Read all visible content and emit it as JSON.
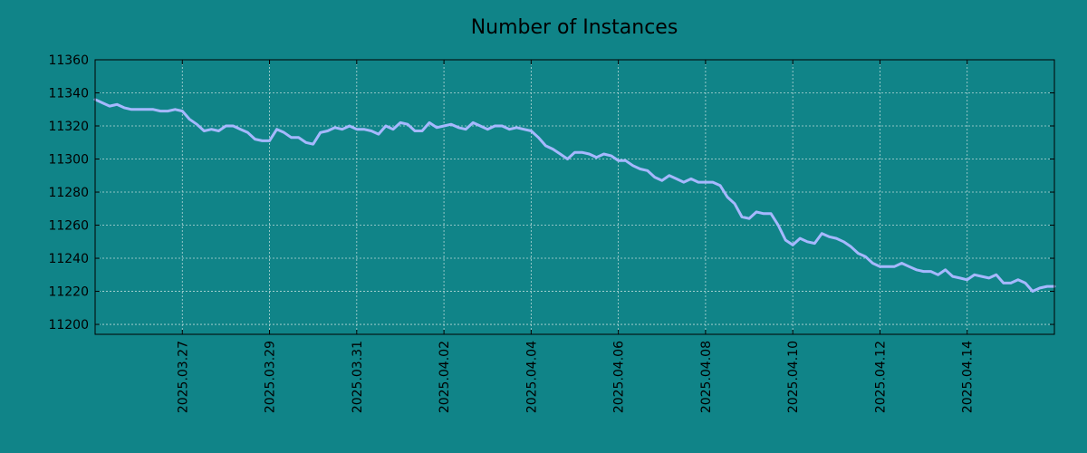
{
  "chart_data": {
    "type": "line",
    "title": "Number of Instances",
    "xlabel": "",
    "ylabel": "",
    "background_color": "#108488",
    "line_color": "#a6b8ff",
    "grid": true,
    "xlim": [
      "2025-03-25",
      "2025-04-16"
    ],
    "ylim": [
      11194,
      11360
    ],
    "y_ticks": [
      11200,
      11220,
      11240,
      11260,
      11280,
      11300,
      11320,
      11340,
      11360
    ],
    "x_ticks": [
      "2025.03.27",
      "2025.03.29",
      "2025.03.31",
      "2025.04.02",
      "2025.04.04",
      "2025.04.06",
      "2025.04.08",
      "2025.04.10",
      "2025.04.12",
      "2025.04.14"
    ],
    "series": [
      {
        "x": [
          "2025-03-25 00:00",
          "2025-03-25 04:00",
          "2025-03-25 08:00",
          "2025-03-25 12:00",
          "2025-03-25 16:00",
          "2025-03-25 20:00",
          "2025-03-26 00:00",
          "2025-03-26 04:00",
          "2025-03-26 08:00",
          "2025-03-26 12:00",
          "2025-03-26 16:00",
          "2025-03-26 20:00",
          "2025-03-27 00:00",
          "2025-03-27 04:00",
          "2025-03-27 08:00",
          "2025-03-27 12:00",
          "2025-03-27 16:00",
          "2025-03-27 20:00",
          "2025-03-28 00:00",
          "2025-03-28 04:00",
          "2025-03-28 08:00",
          "2025-03-28 12:00",
          "2025-03-28 16:00",
          "2025-03-28 20:00",
          "2025-03-29 00:00",
          "2025-03-29 04:00",
          "2025-03-29 08:00",
          "2025-03-29 12:00",
          "2025-03-29 16:00",
          "2025-03-29 20:00",
          "2025-03-30 00:00",
          "2025-03-30 04:00",
          "2025-03-30 08:00",
          "2025-03-30 12:00",
          "2025-03-30 16:00",
          "2025-03-30 20:00",
          "2025-03-31 00:00",
          "2025-03-31 04:00",
          "2025-03-31 08:00",
          "2025-03-31 12:00",
          "2025-03-31 16:00",
          "2025-03-31 20:00",
          "2025-04-01 00:00",
          "2025-04-01 04:00",
          "2025-04-01 08:00",
          "2025-04-01 12:00",
          "2025-04-01 16:00",
          "2025-04-01 20:00",
          "2025-04-02 00:00",
          "2025-04-02 04:00",
          "2025-04-02 08:00",
          "2025-04-02 12:00",
          "2025-04-02 16:00",
          "2025-04-02 20:00",
          "2025-04-03 00:00",
          "2025-04-03 04:00",
          "2025-04-03 08:00",
          "2025-04-03 12:00",
          "2025-04-03 16:00",
          "2025-04-03 20:00",
          "2025-04-04 00:00",
          "2025-04-04 04:00",
          "2025-04-04 08:00",
          "2025-04-04 12:00",
          "2025-04-04 16:00",
          "2025-04-04 20:00",
          "2025-04-05 00:00",
          "2025-04-05 04:00",
          "2025-04-05 08:00",
          "2025-04-05 12:00",
          "2025-04-05 16:00",
          "2025-04-05 20:00",
          "2025-04-06 00:00",
          "2025-04-06 04:00",
          "2025-04-06 08:00",
          "2025-04-06 12:00",
          "2025-04-06 16:00",
          "2025-04-06 20:00",
          "2025-04-07 00:00",
          "2025-04-07 04:00",
          "2025-04-07 08:00",
          "2025-04-07 12:00",
          "2025-04-07 16:00",
          "2025-04-07 20:00",
          "2025-04-08 00:00",
          "2025-04-08 04:00",
          "2025-04-08 08:00",
          "2025-04-08 12:00",
          "2025-04-08 16:00",
          "2025-04-08 20:00",
          "2025-04-09 00:00",
          "2025-04-09 04:00",
          "2025-04-09 08:00",
          "2025-04-09 12:00",
          "2025-04-09 16:00",
          "2025-04-09 20:00",
          "2025-04-10 00:00",
          "2025-04-10 04:00",
          "2025-04-10 08:00",
          "2025-04-10 12:00",
          "2025-04-10 16:00",
          "2025-04-10 20:00",
          "2025-04-11 00:00",
          "2025-04-11 04:00",
          "2025-04-11 08:00",
          "2025-04-11 12:00",
          "2025-04-11 16:00",
          "2025-04-11 20:00",
          "2025-04-12 00:00",
          "2025-04-12 04:00",
          "2025-04-12 08:00",
          "2025-04-12 12:00",
          "2025-04-12 16:00",
          "2025-04-12 20:00",
          "2025-04-13 00:00",
          "2025-04-13 04:00",
          "2025-04-13 08:00",
          "2025-04-13 12:00",
          "2025-04-13 16:00",
          "2025-04-13 20:00",
          "2025-04-14 00:00",
          "2025-04-14 04:00",
          "2025-04-14 08:00",
          "2025-04-14 12:00",
          "2025-04-14 16:00",
          "2025-04-14 20:00",
          "2025-04-15 00:00",
          "2025-04-15 04:00",
          "2025-04-15 08:00",
          "2025-04-15 12:00",
          "2025-04-15 16:00",
          "2025-04-15 20:00",
          "2025-04-16 00:00"
        ],
        "values": [
          11336,
          11334,
          11332,
          11333,
          11331,
          11330,
          11330,
          11330,
          11330,
          11329,
          11329,
          11330,
          11329,
          11324,
          11321,
          11317,
          11318,
          11317,
          11320,
          11320,
          11318,
          11316,
          11312,
          11311,
          11311,
          11318,
          11316,
          11313,
          11313,
          11310,
          11309,
          11316,
          11317,
          11319,
          11318,
          11320,
          11318,
          11318,
          11317,
          11315,
          11320,
          11318,
          11322,
          11321,
          11317,
          11317,
          11322,
          11319,
          11320,
          11321,
          11319,
          11318,
          11322,
          11320,
          11318,
          11320,
          11320,
          11318,
          11319,
          11318,
          11317,
          11313,
          11308,
          11306,
          11303,
          11300,
          11304,
          11304,
          11303,
          11301,
          11303,
          11302,
          11299,
          11299,
          11296,
          11294,
          11293,
          11289,
          11287,
          11290,
          11288,
          11286,
          11288,
          11286,
          11286,
          11286,
          11284,
          11277,
          11273,
          11265,
          11264,
          11268,
          11267,
          11267,
          11260,
          11251,
          11248,
          11252,
          11250,
          11249,
          11255,
          11253,
          11252,
          11250,
          11247,
          11243,
          11241,
          11237,
          11235,
          11235,
          11235,
          11237,
          11235,
          11233,
          11232,
          11232,
          11230,
          11233,
          11229,
          11228,
          11227,
          11230,
          11229,
          11228,
          11230,
          11225,
          11225,
          11227,
          11225,
          11220,
          11222,
          11223,
          11223
        ]
      }
    ]
  }
}
